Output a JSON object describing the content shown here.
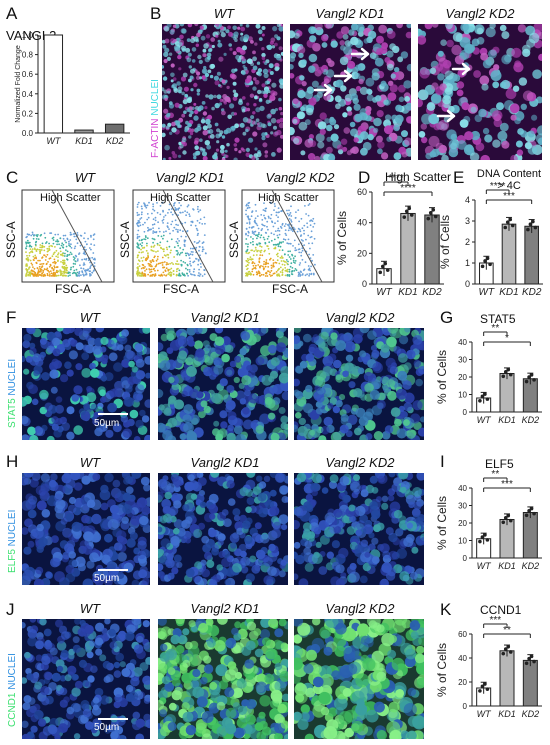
{
  "panels": {
    "A": {
      "letter": "A",
      "gene": "VANGL2",
      "ylabel": "Normalized Fold Change"
    },
    "B": {
      "letter": "B",
      "stain_left": "F-ACTIN",
      "stain_right": "NUCLEI"
    },
    "C": {
      "letter": "C",
      "gate": "High Scatter",
      "y_axis": "SSC-A",
      "x_axis": "FSC-A"
    },
    "D": {
      "letter": "D",
      "title": "High Scatter",
      "ylabel": "% of Cells",
      "sig": "****"
    },
    "E": {
      "letter": "E",
      "title_line1": "DNA Content",
      "title_line2": "> 4C",
      "ylabel": "% of Cells"
    },
    "F": {
      "letter": "F",
      "stain_left": "STAT5",
      "stain_right": "NUCLEI",
      "scalebar": "50µm"
    },
    "G": {
      "letter": "G",
      "title": "STAT5",
      "ylabel": "% of Cells"
    },
    "H": {
      "letter": "H",
      "stain_left": "ELF5",
      "stain_right": "NUCLEI",
      "scalebar": "50µm"
    },
    "I": {
      "letter": "I",
      "title": "ELF5",
      "ylabel": "% of Cells"
    },
    "J": {
      "letter": "J",
      "stain_left": "CCND1",
      "stain_right": "NUCLEI",
      "scalebar": "50µm"
    },
    "K": {
      "letter": "K",
      "title": "CCND1",
      "ylabel": "% of Cells"
    }
  },
  "conditions": [
    "WT",
    "Vangl2 KD1",
    "Vangl2 KD2"
  ],
  "chart_data": [
    {
      "id": "A",
      "type": "bar",
      "categories": [
        "WT",
        "KD1",
        "KD2"
      ],
      "values": [
        1.0,
        0.03,
        0.09
      ],
      "ylabel": "Normalized Fold Change",
      "ylim": [
        0,
        1.0
      ],
      "yticks": [
        "0.0",
        "0.2",
        "0.4",
        "0.6",
        "0.8",
        "1.0"
      ],
      "fills": [
        "#ffffff",
        "#9a9a9a",
        "#6e6e6e"
      ]
    },
    {
      "id": "D",
      "type": "bar",
      "categories": [
        "WT",
        "KD1",
        "KD2"
      ],
      "values": [
        10,
        46,
        45
      ],
      "title": "High Scatter",
      "ylabel": "% of Cells",
      "ylim": [
        0,
        60
      ],
      "yticks": [
        "0",
        "20",
        "40",
        "60"
      ],
      "significance": [
        {
          "from": 0,
          "to": 1,
          "label": "****"
        },
        {
          "from": 0,
          "to": 2,
          "label": "****"
        }
      ]
    },
    {
      "id": "E",
      "type": "bar",
      "categories": [
        "WT",
        "KD1",
        "KD2"
      ],
      "values": [
        1.0,
        2.85,
        2.75
      ],
      "ylabel": "% of Cells",
      "ylim": [
        0,
        4
      ],
      "yticks": [
        "0",
        "1",
        "2",
        "3",
        "4"
      ],
      "significance": [
        {
          "from": 0,
          "to": 1,
          "label": "****"
        },
        {
          "from": 0,
          "to": 2,
          "label": "***"
        }
      ]
    },
    {
      "id": "G",
      "type": "bar",
      "categories": [
        "WT",
        "KD1",
        "KD2"
      ],
      "values": [
        8,
        22,
        19
      ],
      "title": "STAT5",
      "ylabel": "% of Cells",
      "ylim": [
        0,
        40
      ],
      "yticks": [
        "0",
        "10",
        "20",
        "30",
        "40"
      ],
      "significance": [
        {
          "from": 0,
          "to": 1,
          "label": "**"
        },
        {
          "from": 0,
          "to": 2,
          "label": "*"
        }
      ]
    },
    {
      "id": "I",
      "type": "bar",
      "categories": [
        "WT",
        "KD1",
        "KD2"
      ],
      "values": [
        11,
        22,
        26
      ],
      "title": "ELF5",
      "ylabel": "% of Cells",
      "ylim": [
        0,
        40
      ],
      "yticks": [
        "0",
        "10",
        "20",
        "30",
        "40"
      ],
      "significance": [
        {
          "from": 0,
          "to": 1,
          "label": "**"
        },
        {
          "from": 0,
          "to": 2,
          "label": "***"
        }
      ]
    },
    {
      "id": "K",
      "type": "bar",
      "categories": [
        "WT",
        "KD1",
        "KD2"
      ],
      "values": [
        15,
        46,
        38
      ],
      "title": "CCND1",
      "ylabel": "% of Cells",
      "ylim": [
        0,
        60
      ],
      "yticks": [
        "0",
        "20",
        "40",
        "60"
      ],
      "significance": [
        {
          "from": 0,
          "to": 1,
          "label": "***"
        },
        {
          "from": 0,
          "to": 2,
          "label": "**"
        }
      ]
    }
  ]
}
